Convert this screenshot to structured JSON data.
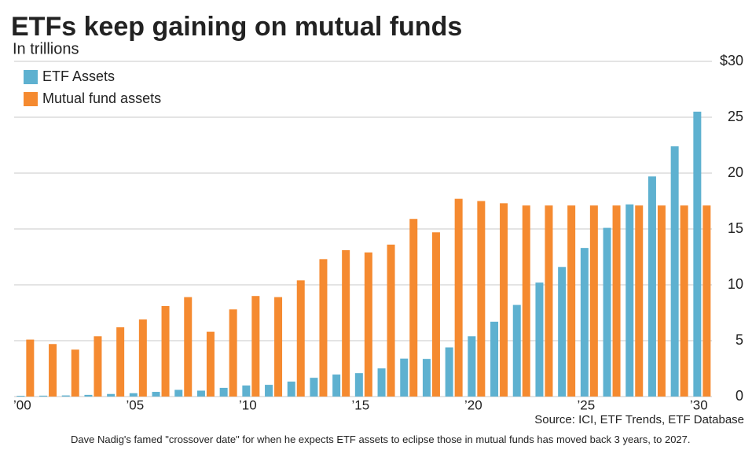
{
  "chart_data": {
    "type": "bar",
    "title": "ETFs keep gaining on mutual funds",
    "subtitle": "In trillions",
    "source": "Source: ICI, ETF Trends, ETF Database",
    "caption": "Dave Nadig's famed \"crossover date\" for when he expects ETF assets to eclipse those in mutual funds has moved back 3 years, to 2027.",
    "categories": [
      "’00",
      null,
      null,
      null,
      null,
      "’05",
      null,
      null,
      null,
      null,
      "’10",
      null,
      null,
      null,
      null,
      "’15",
      null,
      null,
      null,
      null,
      "’20",
      null,
      null,
      null,
      null,
      "’25",
      null,
      null,
      null,
      null,
      "’30"
    ],
    "series": [
      {
        "name": "ETF Assets",
        "color": "#5eb1d0",
        "values": [
          0.07,
          0.08,
          0.1,
          0.15,
          0.23,
          0.3,
          0.42,
          0.6,
          0.53,
          0.78,
          0.99,
          1.05,
          1.34,
          1.68,
          1.97,
          2.1,
          2.52,
          3.4,
          3.37,
          4.4,
          5.4,
          6.7,
          8.2,
          10.2,
          11.6,
          13.3,
          15.1,
          17.2,
          19.7,
          22.4,
          25.5
        ]
      },
      {
        "name": "Mutual fund assets",
        "color": "#f58a30",
        "values": [
          5.1,
          4.7,
          4.2,
          5.4,
          6.2,
          6.9,
          8.1,
          8.9,
          5.8,
          7.8,
          9.0,
          8.9,
          10.4,
          12.3,
          13.1,
          12.9,
          13.6,
          15.9,
          14.7,
          17.7,
          17.5,
          17.3,
          17.1,
          17.1,
          17.1,
          17.1,
          17.1,
          17.1,
          17.1,
          17.1,
          17.1
        ]
      }
    ],
    "ylim": [
      0,
      30
    ],
    "yticks": [
      0,
      5,
      10,
      15,
      20,
      25,
      {
        "value": 30,
        "label": "$30"
      }
    ],
    "grid": true,
    "legend": "top-left"
  }
}
